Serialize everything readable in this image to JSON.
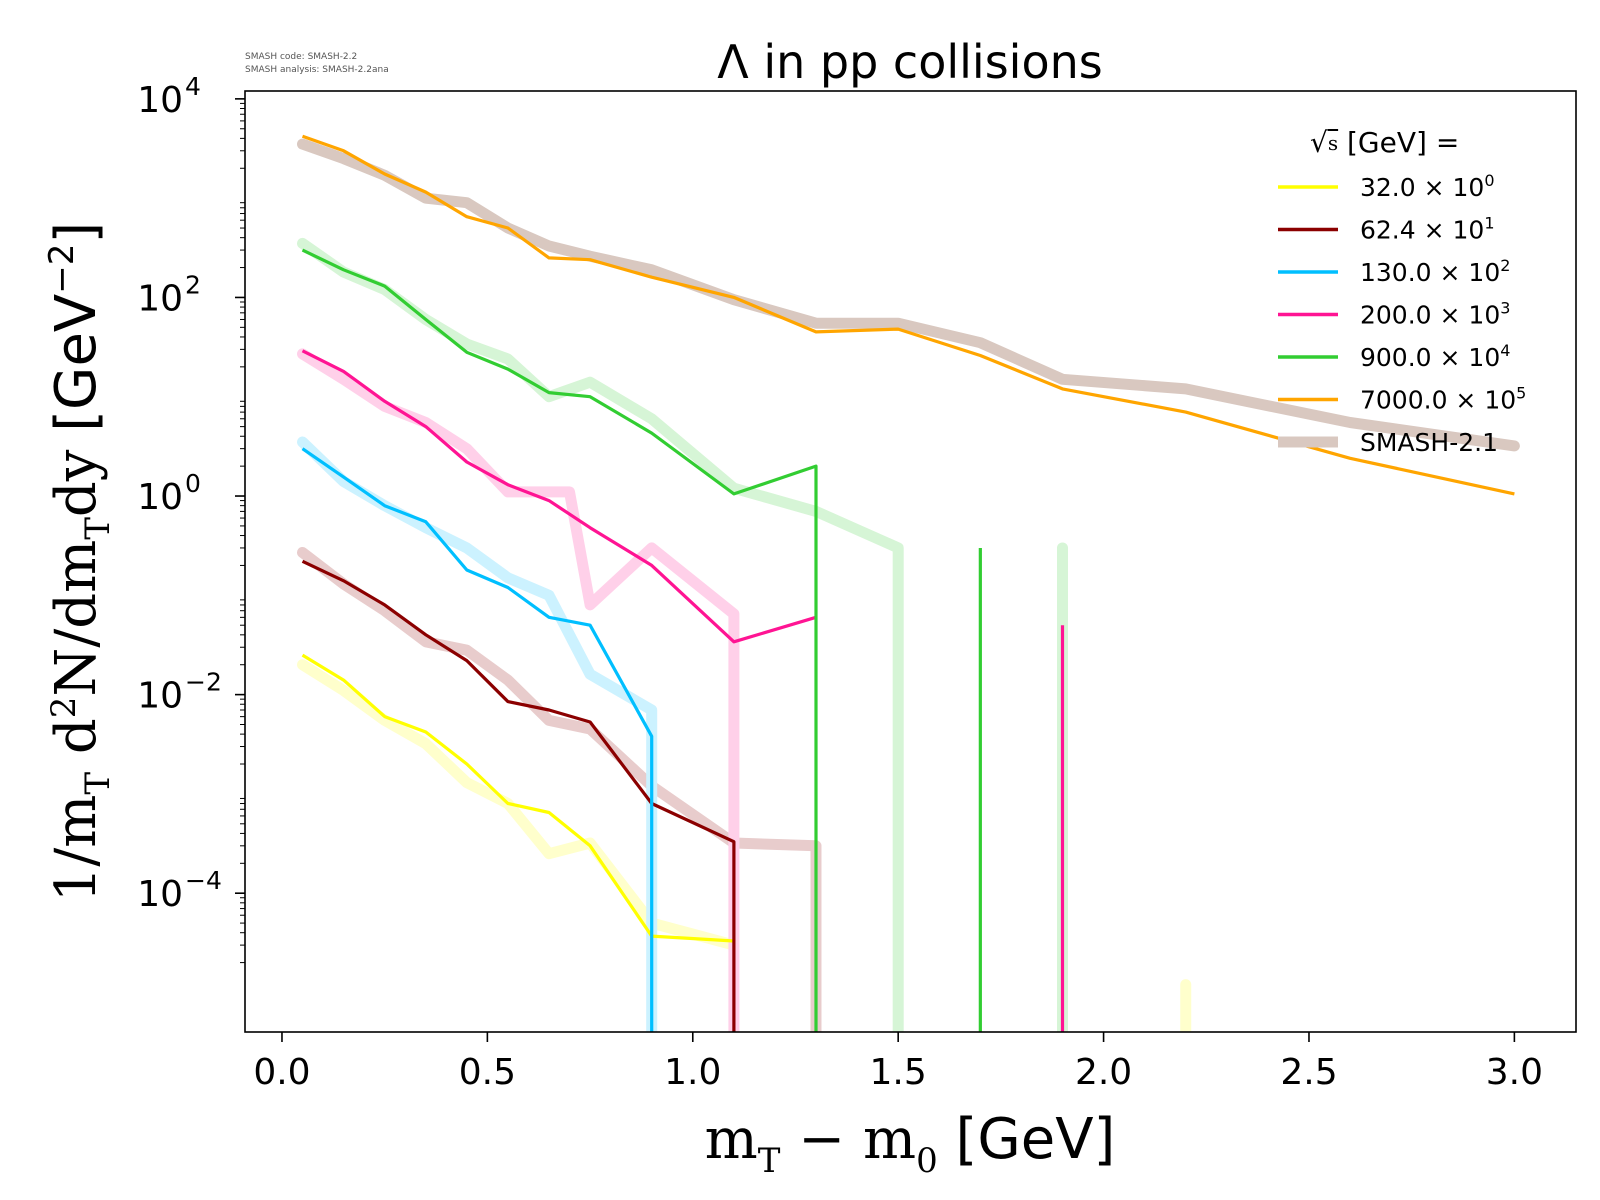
{
  "header": {
    "code_line": "SMASH code:      SMASH-2.2",
    "analysis_line": "SMASH analysis: SMASH-2.2ana"
  },
  "chart_data": {
    "type": "line",
    "title": "Λ in pp collisions",
    "xlabel": "m_T − m_0 [GeV]",
    "ylabel": "1/m_T d²N/dm_T dy [GeV⁻²]",
    "y_scale": "log",
    "xlim": [
      -0.09,
      3.15
    ],
    "ylim": [
      4e-06,
      12000
    ],
    "x_ticks": [
      0.0,
      0.5,
      1.0,
      1.5,
      2.0,
      2.5,
      3.0
    ],
    "x_tick_labels": [
      "0.0",
      "0.5",
      "1.0",
      "1.5",
      "2.0",
      "2.5",
      "3.0"
    ],
    "y_ticks": [
      0.0001,
      0.01,
      1,
      100,
      10000
    ],
    "y_tick_labels": [
      {
        "base": "10",
        "exp": "−4"
      },
      {
        "base": "10",
        "exp": "−2"
      },
      {
        "base": "10",
        "exp": "0"
      },
      {
        "base": "10",
        "exp": "2"
      },
      {
        "base": "10",
        "exp": "4"
      }
    ],
    "legend": {
      "title_symbol": "√s",
      "title_rest": "[GeV] =",
      "placement": "top-right",
      "reference_label": "SMASH-2.1"
    },
    "series": [
      {
        "name": "32.0 × 10",
        "exp": "0",
        "color": "#ffff00",
        "x": [
          0.05,
          0.15,
          0.25,
          0.35,
          0.45,
          0.55,
          0.65,
          0.75,
          0.9,
          1.1
        ],
        "y": [
          0.025,
          0.014,
          0.006,
          0.0042,
          0.002,
          0.0008,
          0.00065,
          0.0003,
          3.7e-05,
          3.3e-05
        ],
        "drop_x": null,
        "ref_x": [
          0.05,
          0.15,
          0.25,
          0.35,
          0.45,
          0.55,
          0.65,
          0.75,
          0.9,
          1.1
        ],
        "ref_y": [
          0.02,
          0.011,
          0.0055,
          0.0032,
          0.0013,
          0.0008,
          0.00025,
          0.00032,
          5e-05,
          3e-05
        ],
        "ref_spikes": [
          [
            2.2,
            1.2e-05
          ]
        ]
      },
      {
        "name": "62.4 × 10",
        "exp": "1",
        "color": "#8b0000",
        "x": [
          0.05,
          0.15,
          0.25,
          0.35,
          0.45,
          0.55,
          0.65,
          0.75,
          0.9,
          1.1
        ],
        "y": [
          0.22,
          0.14,
          0.08,
          0.04,
          0.022,
          0.0085,
          0.007,
          0.0053,
          0.0008,
          0.00033
        ],
        "drop_x": 1.1,
        "ref_x": [
          0.05,
          0.15,
          0.25,
          0.35,
          0.45,
          0.55,
          0.65,
          0.75,
          0.9,
          1.1,
          1.3
        ],
        "ref_y": [
          0.27,
          0.13,
          0.07,
          0.034,
          0.028,
          0.014,
          0.0055,
          0.0045,
          0.0012,
          0.00032,
          0.0003
        ],
        "ref_drop_x": 1.3
      },
      {
        "name": "130.0 × 10",
        "exp": "2",
        "color": "#00bfff",
        "x": [
          0.05,
          0.15,
          0.25,
          0.35,
          0.45,
          0.55,
          0.65,
          0.75,
          0.9
        ],
        "y": [
          3.0,
          1.55,
          0.8,
          0.55,
          0.18,
          0.12,
          0.06,
          0.05,
          0.0038
        ],
        "drop_x": 0.9,
        "ref_x": [
          0.05,
          0.15,
          0.25,
          0.35,
          0.45,
          0.55,
          0.65,
          0.75,
          0.9
        ],
        "ref_y": [
          3.5,
          1.4,
          0.8,
          0.48,
          0.3,
          0.15,
          0.1,
          0.016,
          0.007
        ],
        "ref_drop_x": 0.9
      },
      {
        "name": "200.0 × 10",
        "exp": "3",
        "color": "#ff1493",
        "x": [
          0.05,
          0.15,
          0.25,
          0.35,
          0.45,
          0.55,
          0.65,
          0.75,
          0.9,
          1.1,
          1.3
        ],
        "y": [
          29,
          18,
          9,
          5,
          2.2,
          1.3,
          0.9,
          0.48,
          0.2,
          0.034,
          0.06
        ],
        "drop_x": null,
        "spikes": [
          [
            1.9,
            0.05
          ]
        ],
        "ref_x": [
          0.05,
          0.15,
          0.25,
          0.35,
          0.45,
          0.55,
          0.65,
          0.7,
          0.75,
          0.9,
          1.1
        ],
        "ref_y": [
          27,
          15,
          8,
          5.5,
          3.0,
          1.1,
          1.1,
          1.1,
          0.08,
          0.3,
          0.065
        ],
        "ref_drop_x": 1.1
      },
      {
        "name": "900.0 × 10",
        "exp": "4",
        "color": "#32cd32",
        "x": [
          0.05,
          0.15,
          0.25,
          0.35,
          0.45,
          0.55,
          0.65,
          0.75,
          0.9,
          1.1,
          1.3
        ],
        "y": [
          300,
          190,
          130,
          60,
          28,
          19,
          11,
          10,
          4.3,
          1.05,
          2.0
        ],
        "drop_x": 1.3,
        "spikes": [
          [
            1.7,
            0.3
          ]
        ],
        "ref_x": [
          0.05,
          0.15,
          0.25,
          0.35,
          0.45,
          0.55,
          0.65,
          0.75,
          0.9,
          1.1,
          1.3,
          1.5
        ],
        "ref_y": [
          350,
          180,
          120,
          60,
          34,
          24,
          10,
          14,
          6,
          1.2,
          0.7,
          0.3
        ],
        "ref_drop_x": 1.5,
        "ref_spikes": [
          [
            1.9,
            0.3
          ]
        ]
      },
      {
        "name": "7000.0 × 10",
        "exp": "5",
        "color": "#ffa500",
        "x": [
          0.05,
          0.15,
          0.25,
          0.35,
          0.45,
          0.55,
          0.65,
          0.75,
          0.9,
          1.1,
          1.3,
          1.5,
          1.7,
          1.9,
          2.2,
          2.6,
          3.0
        ],
        "y": [
          4200,
          3000,
          1750,
          1150,
          650,
          500,
          250,
          240,
          160,
          100,
          45,
          48,
          26,
          12,
          7,
          2.4,
          1.05
        ],
        "drop_x": null,
        "ref_x": [
          0.05,
          0.15,
          0.25,
          0.35,
          0.45,
          0.55,
          0.65,
          0.75,
          0.9,
          1.1,
          1.3,
          1.5,
          1.7,
          1.9,
          2.2,
          2.6,
          3.0
        ],
        "ref_y": [
          3500,
          2500,
          1700,
          1000,
          900,
          500,
          330,
          260,
          190,
          95,
          55,
          55,
          35,
          15,
          12,
          5.5,
          3.2
        ]
      }
    ]
  }
}
